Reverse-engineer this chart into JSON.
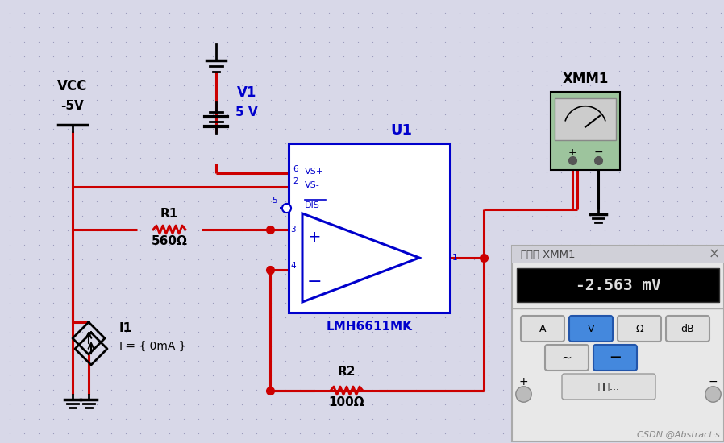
{
  "bg_color": "#d8d8e8",
  "dot_color": "#9999bb",
  "wire_red": "#cc0000",
  "wire_blue": "#0000cc",
  "black": "#000000",
  "vcc_label": "VCC",
  "vcc_value": "-5V",
  "v1_label": "V1",
  "v1_value": "5 V",
  "r1_label": "R1",
  "r1_value": "560Ω",
  "r2_label": "R2",
  "r2_value": "100Ω",
  "i1_label": "I1",
  "i1_value": "I = { 0mA }",
  "u1_label": "U1",
  "u1_chip": "LMH6611MK",
  "xmm1_label": "XMM1",
  "meter_label": "万用表-XMM1",
  "meter_value": "-2.563 mV",
  "pin_vs_plus": "VS+",
  "pin_vs_minus": "VS-",
  "pin_dis": "DIS",
  "csdn_label": "CSDN @Abstract·s"
}
